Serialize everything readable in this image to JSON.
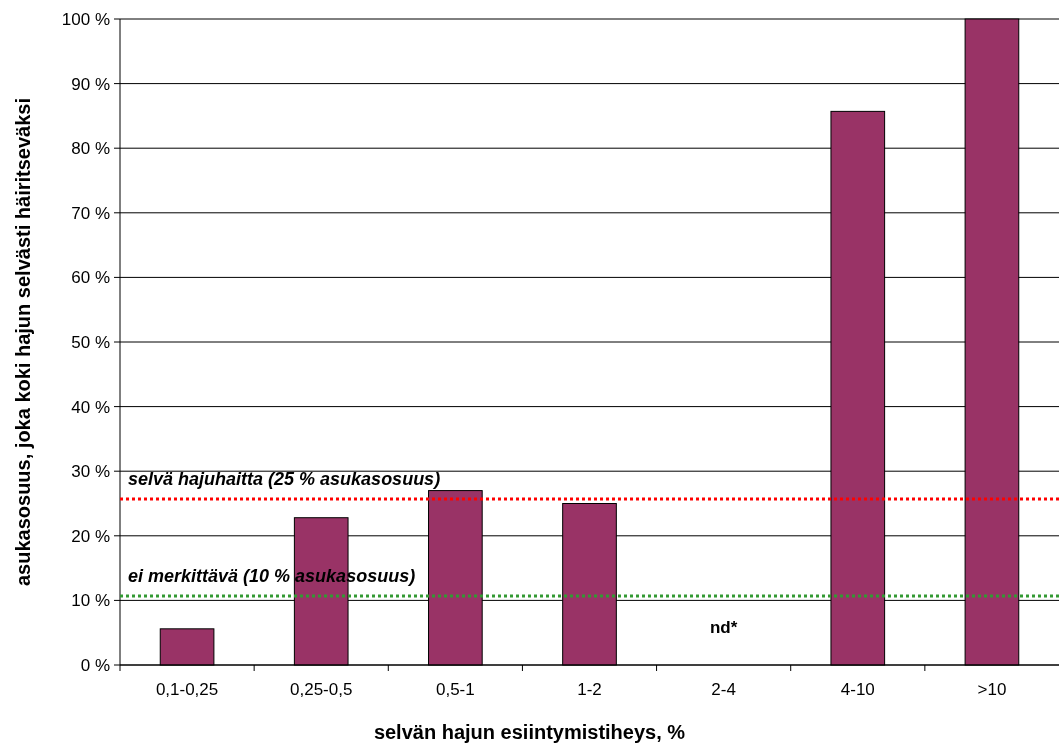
{
  "chart_data": {
    "type": "bar",
    "xlabel": "selvän hajun esiintymistiheys, %",
    "ylabel": "asukasosuus, joka koki hajun selvästi häiritseväksi",
    "categories": [
      "0,1-0,25",
      "0,25-0,5",
      "0,5-1",
      "1-2",
      "2-4",
      "4-10",
      ">10"
    ],
    "values": [
      5.6,
      22.8,
      27.0,
      25.0,
      null,
      85.7,
      100
    ],
    "color": "#993366",
    "ylim": [
      0,
      100
    ],
    "yticks": [
      {
        "value": 0,
        "label": "0 %"
      },
      {
        "value": 10,
        "label": "10 %"
      },
      {
        "value": 20,
        "label": "20 %"
      },
      {
        "value": 30,
        "label": "30 %"
      },
      {
        "value": 40,
        "label": "40 %"
      },
      {
        "value": 50,
        "label": "50 %"
      },
      {
        "value": 60,
        "label": "60 %"
      },
      {
        "value": 70,
        "label": "70 %"
      },
      {
        "value": 80,
        "label": "80 %"
      },
      {
        "value": 90,
        "label": "90 %"
      },
      {
        "value": 100,
        "label": "100 %"
      }
    ],
    "grid": "y",
    "ref_lines": [
      {
        "axis": "y",
        "value": 25.7,
        "label": "selvä hajuhaitta (25 % asukasosuus)",
        "color": "#ff0000",
        "line_style": "dotted"
      },
      {
        "axis": "y",
        "value": 10.7,
        "label": "ei merkittävä (10 % asukasosuus)",
        "color": "#339933",
        "line_style": "dotted"
      }
    ],
    "annotations": [
      "nd*"
    ]
  }
}
